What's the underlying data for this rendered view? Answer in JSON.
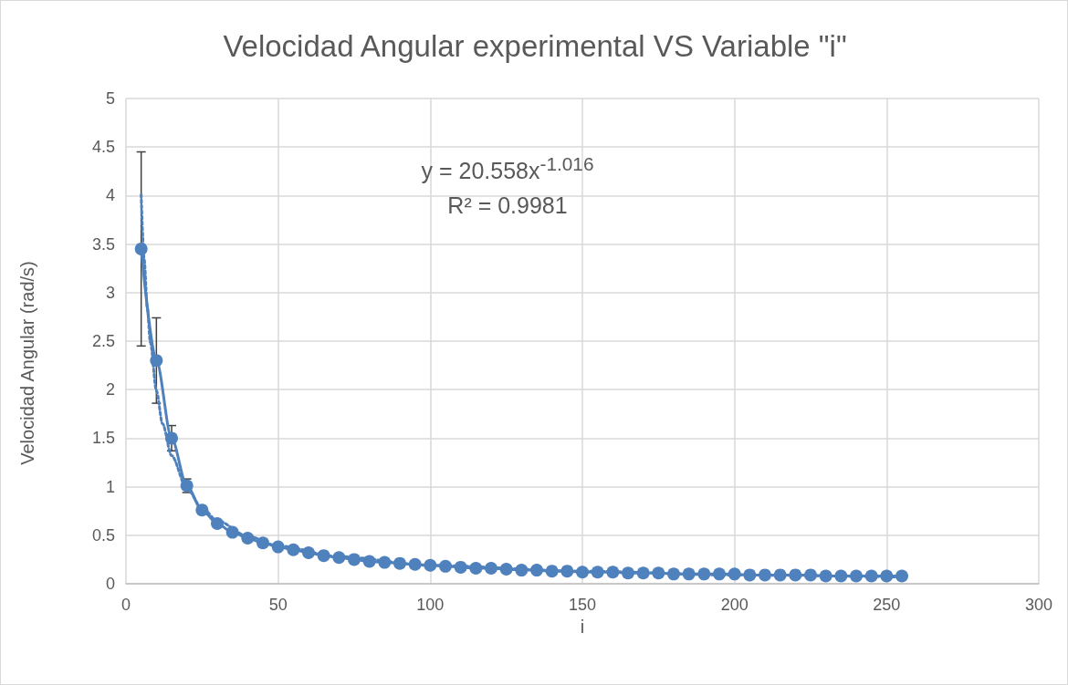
{
  "chart_data": {
    "type": "line",
    "title": "Velocidad Angular experimental VS Variable \"i\"",
    "xlabel": "i",
    "ylabel": "Velocidad Angular (rad/s)",
    "annotations": [
      "y = 20.558x$^{-1.016}$",
      "R² = 0.9981"
    ],
    "xlim": [
      0,
      300
    ],
    "xticks": [
      0,
      50,
      100,
      150,
      200,
      250,
      300
    ],
    "ylim": [
      0,
      5
    ],
    "yticks": [
      0,
      0.5,
      1,
      1.5,
      2,
      2.5,
      3,
      3.5,
      4,
      4.5,
      5
    ],
    "grid": true,
    "series": [
      {
        "color": "#4f81bd",
        "marker": "circle",
        "line_style": "solid",
        "x": [
          5,
          10,
          15,
          20,
          25,
          30,
          35,
          40,
          45,
          50,
          55,
          60,
          65,
          70,
          75,
          80,
          85,
          90,
          95,
          100,
          105,
          110,
          115,
          120,
          125,
          130,
          135,
          140,
          145,
          150,
          155,
          160,
          165,
          170,
          175,
          180,
          185,
          190,
          195,
          200,
          205,
          210,
          215,
          220,
          225,
          230,
          235,
          240,
          245,
          250,
          255
        ],
        "values": [
          3.45,
          2.3,
          1.5,
          1.01,
          0.76,
          0.62,
          0.53,
          0.47,
          0.42,
          0.38,
          0.35,
          0.32,
          0.29,
          0.27,
          0.25,
          0.23,
          0.22,
          0.21,
          0.2,
          0.19,
          0.18,
          0.17,
          0.16,
          0.16,
          0.15,
          0.14,
          0.14,
          0.13,
          0.13,
          0.12,
          0.12,
          0.12,
          0.11,
          0.11,
          0.11,
          0.1,
          0.1,
          0.1,
          0.1,
          0.1,
          0.09,
          0.09,
          0.09,
          0.09,
          0.09,
          0.08,
          0.08,
          0.08,
          0.08,
          0.08,
          0.08
        ],
        "errors": [
          1.0,
          0.44,
          0.13,
          0.07,
          null,
          null,
          null,
          null,
          null,
          null,
          null,
          null,
          null,
          null,
          null,
          null,
          null,
          null,
          null,
          null,
          null,
          null,
          null,
          null,
          null,
          null,
          null,
          null,
          null,
          null,
          null,
          null,
          null,
          null,
          null,
          null,
          null,
          null,
          null,
          null,
          null,
          null,
          null,
          null,
          null,
          null,
          null,
          null,
          null,
          null,
          null
        ]
      },
      {
        "color": "#4f81bd",
        "marker": "none",
        "line_style": "dotted",
        "x": [
          5,
          6,
          7,
          8,
          10,
          12,
          15,
          20,
          25,
          30,
          40,
          50,
          70,
          100,
          150,
          200,
          255
        ],
        "values": [
          4.01,
          3.34,
          2.85,
          2.49,
          1.99,
          1.65,
          1.32,
          0.98,
          0.78,
          0.65,
          0.49,
          0.39,
          0.28,
          0.19,
          0.13,
          0.09,
          0.07
        ]
      }
    ]
  }
}
